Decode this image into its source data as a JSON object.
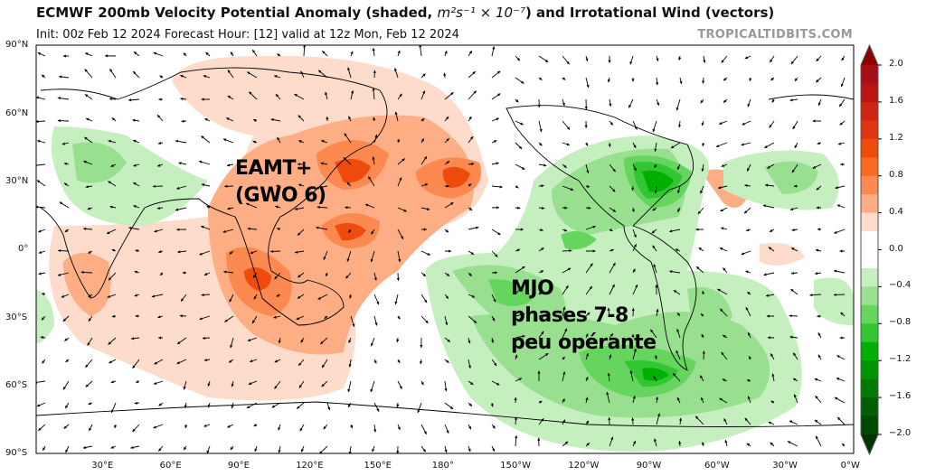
{
  "header": {
    "title_prefix": "ECMWF 200mb Velocity Potential Anomaly (shaded,",
    "title_units": "m²s⁻¹ × 10⁻⁷",
    "title_suffix": ") and Irrotational Wind (vectors)",
    "subtitle": "Init: 00z Feb 12 2024   Forecast Hour: [12]   valid at 12z Mon, Feb 12 2024",
    "brand": "TROPICALTIDBITS.COM"
  },
  "axes": {
    "lat_labels": [
      "90°N",
      "60°N",
      "30°N",
      "0°",
      "30°S",
      "60°S",
      "90°S"
    ],
    "lon_labels": [
      "30°E",
      "60°E",
      "90°E",
      "120°E",
      "150°E",
      "180°",
      "150°W",
      "120°W",
      "90°W",
      "60°W",
      "30°W",
      "0°W"
    ]
  },
  "colorbar": {
    "ticks": [
      "2.0",
      "1.6",
      "1.2",
      "0.8",
      "0.4",
      "0.0",
      "−0.4",
      "−0.8",
      "−1.2",
      "−1.6",
      "−2.0"
    ],
    "colors": [
      "#a50f15",
      "#bb1512",
      "#cf2410",
      "#e03510",
      "#ef4b0c",
      "#f86a1f",
      "#fc8a50",
      "#fdae85",
      "#fddccc",
      "#ffffff",
      "#ffffff",
      "#c6efc0",
      "#98e090",
      "#66d55e",
      "#32c732",
      "#00b000",
      "#009500",
      "#007a00",
      "#006000",
      "#004a00"
    ]
  },
  "annotations": {
    "eamt_line1": "EAMT+",
    "eamt_line2": "(GWO 6)",
    "mjo_line1": "MJO",
    "mjo_line2": "phases 7-8",
    "mjo_line3": "peu opérante"
  }
}
